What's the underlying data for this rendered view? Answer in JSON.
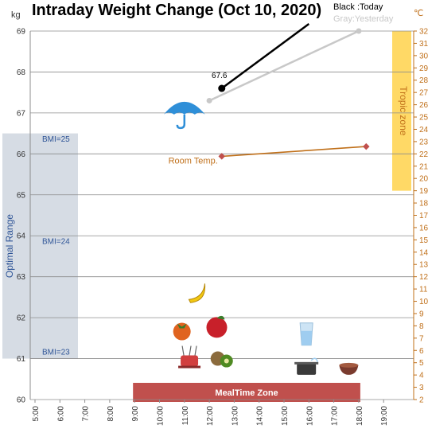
{
  "chart_data": {
    "type": "line",
    "title": "Intraday Weight Change (Oct 10, 2020)",
    "legend": {
      "today": "Black :Today",
      "yesterday": "Gray:Yesterday",
      "placement": "top-right"
    },
    "y_left": {
      "unit": "kg",
      "range": [
        60,
        69
      ],
      "ticks": [
        "60",
        "61",
        "62",
        "63",
        "64",
        "65",
        "66",
        "67",
        "68",
        "69"
      ]
    },
    "y_right": {
      "unit": "℃",
      "range": [
        2,
        32
      ],
      "ticks": [
        "2",
        "3",
        "4",
        "5",
        "6",
        "7",
        "8",
        "9",
        "10",
        "11",
        "12",
        "13",
        "14",
        "15",
        "16",
        "17",
        "18",
        "19",
        "20",
        "21",
        "22",
        "23",
        "24",
        "25",
        "26",
        "27",
        "28",
        "29",
        "30",
        "31",
        "32"
      ]
    },
    "x": {
      "range": [
        5,
        20
      ],
      "ticks": [
        {
          "v": 5,
          "label": "5:00"
        },
        {
          "v": 6,
          "label": "6:00"
        },
        {
          "v": 7,
          "label": "7:00"
        },
        {
          "v": 8,
          "label": "8:00"
        },
        {
          "v": 9,
          "label": "9:00"
        },
        {
          "v": 10,
          "label": "10:00"
        },
        {
          "v": 11,
          "label": "11:00"
        },
        {
          "v": 12,
          "label": "12:00"
        },
        {
          "v": 13,
          "label": "13:00"
        },
        {
          "v": 14,
          "label": "14:00"
        },
        {
          "v": 15,
          "label": "15:00"
        },
        {
          "v": 16,
          "label": "16:00"
        },
        {
          "v": 17,
          "label": "17:00"
        },
        {
          "v": 18,
          "label": "18:00"
        },
        {
          "v": 19,
          "label": "19:00"
        }
      ]
    },
    "grid": true,
    "series": [
      {
        "id": "today",
        "axis": "left",
        "color": "#000000",
        "points": [
          [
            12.5,
            67.6
          ],
          [
            16.0,
            69.3
          ]
        ],
        "label": "67.6"
      },
      {
        "id": "yesterday",
        "axis": "left",
        "color": "#c8c8c8",
        "points": [
          [
            12.0,
            67.3
          ],
          [
            18.0,
            69.0
          ]
        ]
      },
      {
        "id": "room_temp",
        "name": "Room Temp.",
        "axis": "right",
        "color": "#c0701a",
        "points": [
          [
            12.5,
            21.8
          ],
          [
            18.3,
            22.6
          ]
        ]
      }
    ],
    "bands": {
      "optimal": {
        "label": "Optimal Range",
        "kg_range": [
          61,
          66.5
        ],
        "color": "#d6dce4"
      },
      "tropic": {
        "label": "Tropic zone",
        "temp_range": [
          19,
          32
        ],
        "color": "#ffd966"
      },
      "mealtime": {
        "label": "MealTime Zone",
        "x_range": [
          9,
          18
        ],
        "color": "#c0504d"
      }
    },
    "bmi_markers": [
      {
        "label": "BMI=25",
        "kg": 66.3
      },
      {
        "label": "BMI=24",
        "kg": 63.8
      },
      {
        "label": "BMI=23",
        "kg": 61.1
      }
    ],
    "icons": [
      {
        "name": "umbrella-icon",
        "x": 11.0,
        "kg": 67.0
      },
      {
        "name": "banana-icon",
        "x": 11.5,
        "kg": 62.6
      },
      {
        "name": "persimmon-icon",
        "x": 10.9,
        "kg": 61.7
      },
      {
        "name": "apple-icon",
        "x": 12.3,
        "kg": 61.8
      },
      {
        "name": "fondue-icon",
        "x": 11.2,
        "kg": 61.0
      },
      {
        "name": "kiwi-icon",
        "x": 12.5,
        "kg": 61.0
      },
      {
        "name": "water-glass-icon",
        "x": 15.9,
        "kg": 61.6
      },
      {
        "name": "pot-icon",
        "x": 15.9,
        "kg": 60.8
      },
      {
        "name": "soup-bowl-icon",
        "x": 17.6,
        "kg": 60.8
      }
    ]
  }
}
